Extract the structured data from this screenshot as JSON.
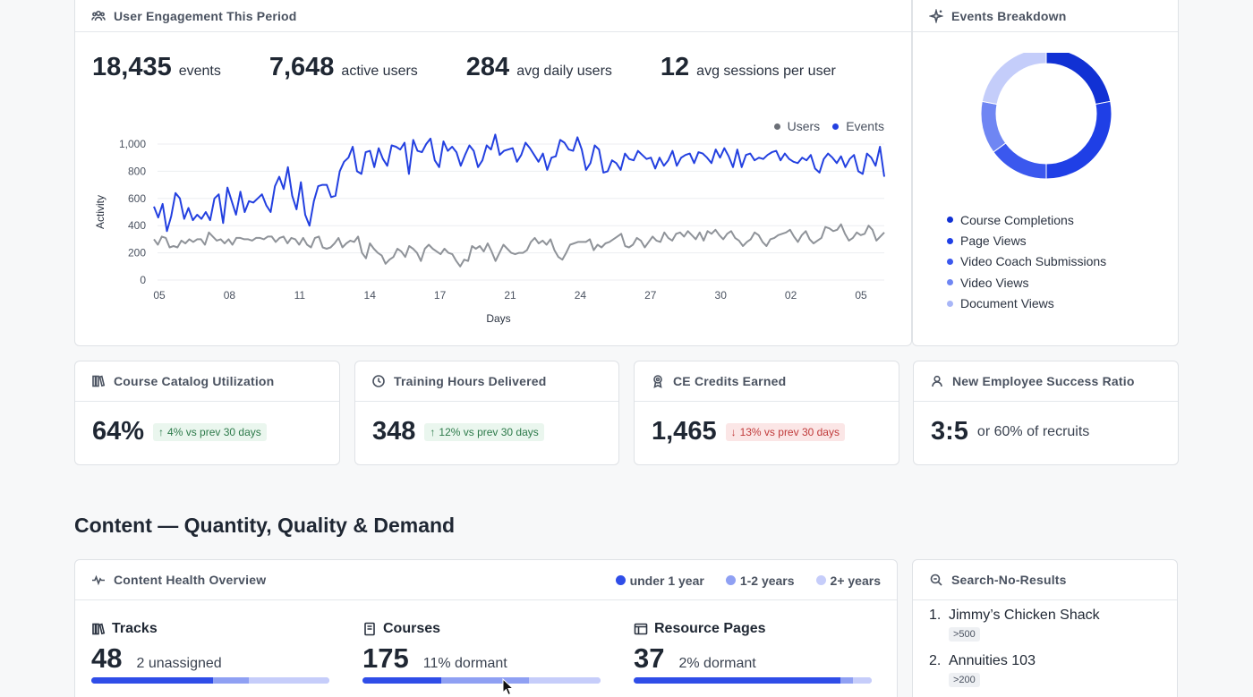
{
  "engagement": {
    "title": "User Engagement This Period",
    "stats": [
      {
        "value": "18,435",
        "label": "events"
      },
      {
        "value": "7,648",
        "label": "active users"
      },
      {
        "value": "284",
        "label": "avg daily users"
      },
      {
        "value": "12",
        "label": "avg sessions per user"
      }
    ],
    "legend": {
      "users": "Users",
      "events": "Events"
    }
  },
  "chart_data": {
    "type": "line",
    "xlabel": "Days",
    "ylabel": "Activity",
    "ylim": [
      0,
      1000
    ],
    "yticks": [
      "0",
      "200",
      "400",
      "600",
      "800",
      "1,000"
    ],
    "xticks": [
      "05",
      "08",
      "11",
      "14",
      "17",
      "21",
      "24",
      "27",
      "30",
      "02",
      "05"
    ],
    "legend_position": "top-right",
    "grid": true,
    "series": [
      {
        "name": "Events",
        "color": "#2340e0",
        "values": [
          540,
          460,
          560,
          360,
          470,
          640,
          600,
          450,
          530,
          440,
          480,
          450,
          500,
          440,
          600,
          630,
          420,
          680,
          580,
          480,
          650,
          500,
          580,
          570,
          600,
          630,
          550,
          500,
          690,
          760,
          670,
          830,
          620,
          520,
          720,
          480,
          400,
          580,
          690,
          700,
          700,
          610,
          620,
          800,
          870,
          900,
          980,
          800,
          780,
          940,
          950,
          830,
          970,
          890,
          840,
          990,
          980,
          960,
          1010,
          780,
          1030,
          950,
          940,
          1000,
          1040,
          880,
          830,
          1020,
          950,
          980,
          940,
          840,
          920,
          990,
          950,
          830,
          880,
          990,
          960,
          1070,
          920,
          950,
          960,
          970,
          870,
          920,
          1010,
          970,
          920,
          870,
          930,
          810,
          900,
          910,
          1030,
          1010,
          960,
          950,
          1050,
          960,
          810,
          860,
          990,
          960,
          790,
          800,
          880,
          860,
          810,
          930,
          890,
          880,
          950,
          920,
          890,
          900,
          820,
          900,
          840,
          880,
          950,
          840,
          900,
          920,
          930,
          860,
          940,
          930,
          900,
          860,
          960,
          900,
          970,
          910,
          830,
          960,
          830,
          920,
          930,
          880,
          900,
          890,
          920,
          940,
          950,
          880,
          930,
          890,
          870,
          860,
          900,
          880,
          920,
          820,
          790,
          890,
          930,
          900,
          860,
          910,
          830,
          890,
          920,
          800,
          780,
          930,
          900,
          840,
          980,
          760
        ]
      },
      {
        "name": "Users",
        "color": "#8f9399",
        "values": [
          300,
          260,
          320,
          310,
          240,
          250,
          240,
          290,
          270,
          300,
          280,
          300,
          300,
          260,
          350,
          320,
          290,
          300,
          270,
          300,
          260,
          310,
          310,
          300,
          300,
          290,
          310,
          310,
          300,
          320,
          320,
          280,
          310,
          320,
          270,
          310,
          300,
          260,
          310,
          260,
          240,
          310,
          320,
          240,
          230,
          240,
          270,
          310,
          240,
          270,
          290,
          280,
          320,
          200,
          160,
          270,
          230,
          200,
          180,
          120,
          150,
          170,
          230,
          210,
          170,
          250,
          230,
          200,
          140,
          230,
          260,
          230,
          210,
          190,
          230,
          200,
          190,
          140,
          100,
          150,
          140,
          250,
          230,
          250,
          210,
          270,
          210,
          140,
          200,
          260,
          230,
          200,
          190,
          200,
          200,
          220,
          280,
          310,
          270,
          290,
          260,
          300,
          220,
          170,
          150,
          200,
          260,
          270,
          280,
          280,
          280,
          300,
          220,
          260,
          240,
          270,
          280,
          300,
          320,
          340,
          250,
          240,
          260,
          310,
          290,
          240,
          280,
          320,
          290,
          280,
          350,
          310,
          290,
          340,
          350,
          320,
          360,
          330,
          300,
          350,
          290,
          360,
          340,
          370,
          330,
          300,
          340,
          360,
          310,
          290,
          250,
          280,
          300,
          350,
          330,
          280,
          250,
          300,
          310,
          330,
          340,
          350,
          370,
          320,
          280,
          330,
          360,
          300,
          270,
          290,
          310,
          390,
          380,
          360,
          370,
          410,
          340,
          290,
          310,
          350,
          330,
          340,
          400,
          370,
          290,
          320,
          350
        ]
      }
    ]
  },
  "events_breakdown": {
    "title": "Events Breakdown",
    "items": [
      {
        "label": "Course Completions",
        "color": "#1131d4",
        "value": 22
      },
      {
        "label": "Page Views",
        "color": "#1f3fe6",
        "value": 28
      },
      {
        "label": "Video Coach Submissions",
        "color": "#3b58ee",
        "value": 15
      },
      {
        "label": "Video Views",
        "color": "#6f86f3",
        "value": 13
      },
      {
        "label": "Document Views",
        "color": "#c4cdfa",
        "value": 22
      }
    ]
  },
  "kpis": [
    {
      "title": "Course Catalog Utilization",
      "icon": "books-icon",
      "value": "64%",
      "change": "4% vs prev 30 days",
      "direction": "up"
    },
    {
      "title": "Training Hours Delivered",
      "icon": "clock-icon",
      "value": "348",
      "change": "12% vs prev 30 days",
      "direction": "up"
    },
    {
      "title": "CE Credits Earned",
      "icon": "award-icon",
      "value": "1,465",
      "change": "13% vs prev 30 days",
      "direction": "down"
    },
    {
      "title": "New Employee Success Ratio",
      "icon": "user-icon",
      "value": "3:5",
      "sub": "or 60% of recruits"
    }
  ],
  "section": {
    "title": "Content — Quantity, Quality & Demand"
  },
  "content_health": {
    "title": "Content Health Overview",
    "legend": [
      {
        "label": "under 1 year",
        "color": "#2f4de8"
      },
      {
        "label": "1-2 years",
        "color": "#8fa0f3"
      },
      {
        "label": "2+ years",
        "color": "#c6cdfa"
      }
    ],
    "items": [
      {
        "title": "Tracks",
        "value": "48",
        "sub": "2 unassigned",
        "shares": [
          0.51,
          0.15,
          0.34
        ]
      },
      {
        "title": "Courses",
        "value": "175",
        "sub": "11% dormant",
        "shares": [
          0.33,
          0.37,
          0.3
        ]
      },
      {
        "title": "Resource Pages",
        "value": "37",
        "sub": "2% dormant",
        "shares": [
          0.87,
          0.05,
          0.08
        ]
      }
    ]
  },
  "search_no_results": {
    "title": "Search-No-Results",
    "items": [
      {
        "rank": "1.",
        "term": "Jimmy’s Chicken Shack",
        "count": ">500"
      },
      {
        "rank": "2.",
        "term": "Annuities 103",
        "count": ">200"
      }
    ]
  }
}
